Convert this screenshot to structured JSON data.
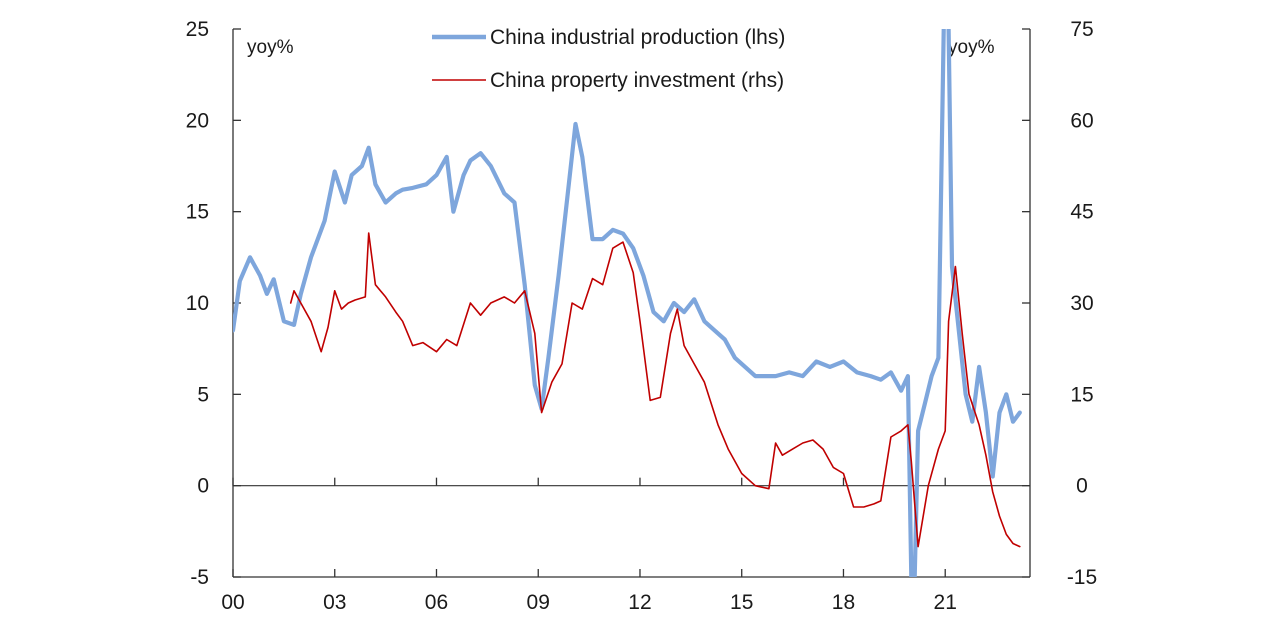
{
  "chart_data": {
    "type": "line",
    "title": "",
    "x_tick_labels": [
      "00",
      "03",
      "06",
      "09",
      "12",
      "15",
      "18",
      "21"
    ],
    "x_tick_years": [
      2000,
      2003,
      2006,
      2009,
      2012,
      2015,
      2018,
      2021
    ],
    "xlim": [
      2000,
      2023.5
    ],
    "y_left": {
      "unit": "yoy%",
      "lim": [
        -5,
        25
      ],
      "ticks": [
        -5,
        0,
        5,
        10,
        15,
        20,
        25
      ]
    },
    "y_right": {
      "unit": "yoy%",
      "lim": [
        -15,
        75
      ],
      "ticks": [
        -15,
        0,
        15,
        30,
        45,
        60,
        75
      ]
    },
    "legend_position": "top-center",
    "series": [
      {
        "name": "China industrial production (lhs)",
        "axis": "left",
        "color": "#7ea6dc",
        "x": [
          2000.0,
          2000.2,
          2000.5,
          2000.8,
          2001.0,
          2001.2,
          2001.5,
          2001.8,
          2002.0,
          2002.3,
          2002.7,
          2003.0,
          2003.3,
          2003.5,
          2003.8,
          2004.0,
          2004.2,
          2004.5,
          2004.8,
          2005.0,
          2005.3,
          2005.7,
          2006.0,
          2006.3,
          2006.5,
          2006.8,
          2007.0,
          2007.3,
          2007.6,
          2008.0,
          2008.3,
          2008.6,
          2008.9,
          2009.1,
          2009.3,
          2009.6,
          2009.9,
          2010.1,
          2010.3,
          2010.6,
          2010.9,
          2011.2,
          2011.5,
          2011.8,
          2012.1,
          2012.4,
          2012.7,
          2013.0,
          2013.3,
          2013.6,
          2013.9,
          2014.2,
          2014.5,
          2014.8,
          2015.1,
          2015.4,
          2015.7,
          2016.0,
          2016.4,
          2016.8,
          2017.2,
          2017.6,
          2018.0,
          2018.4,
          2018.8,
          2019.1,
          2019.4,
          2019.7,
          2019.9,
          2020.0,
          2020.1,
          2020.2,
          2020.4,
          2020.6,
          2020.8,
          2021.0,
          2021.1,
          2021.2,
          2021.4,
          2021.6,
          2021.8,
          2022.0,
          2022.2,
          2022.4,
          2022.6,
          2022.8,
          2023.0,
          2023.2
        ],
        "values": [
          8.5,
          11.2,
          12.5,
          11.5,
          10.5,
          11.3,
          9.0,
          8.8,
          10.5,
          12.5,
          14.5,
          17.2,
          15.5,
          17.0,
          17.5,
          18.5,
          16.5,
          15.5,
          16.0,
          16.2,
          16.3,
          16.5,
          17.0,
          18.0,
          15.0,
          17.0,
          17.8,
          18.2,
          17.5,
          16.0,
          15.5,
          11.0,
          5.5,
          4.2,
          7.0,
          11.5,
          16.5,
          19.8,
          18.0,
          13.5,
          13.5,
          14.0,
          13.8,
          13.0,
          11.5,
          9.5,
          9.0,
          10.0,
          9.5,
          10.2,
          9.0,
          8.5,
          8.0,
          7.0,
          6.5,
          6.0,
          6.0,
          6.0,
          6.2,
          6.0,
          6.8,
          6.5,
          6.8,
          6.2,
          6.0,
          5.8,
          6.2,
          5.2,
          6.0,
          -5.0,
          -5.0,
          3.0,
          4.5,
          6.0,
          7.0,
          30.0,
          25.0,
          12.0,
          8.5,
          5.0,
          3.5,
          6.5,
          4.0,
          0.5,
          4.0,
          5.0,
          3.5,
          4.0
        ]
      },
      {
        "name": "China property investment (rhs)",
        "axis": "right",
        "color": "#c00000",
        "x": [
          2001.7,
          2001.8,
          2002.0,
          2002.3,
          2002.6,
          2002.8,
          2003.0,
          2003.2,
          2003.4,
          2003.6,
          2003.9,
          2004.0,
          2004.2,
          2004.5,
          2004.8,
          2005.0,
          2005.3,
          2005.6,
          2006.0,
          2006.3,
          2006.6,
          2007.0,
          2007.3,
          2007.6,
          2008.0,
          2008.3,
          2008.6,
          2008.9,
          2009.1,
          2009.4,
          2009.7,
          2010.0,
          2010.3,
          2010.6,
          2010.9,
          2011.2,
          2011.5,
          2011.8,
          2012.0,
          2012.3,
          2012.6,
          2012.9,
          2013.1,
          2013.3,
          2013.6,
          2013.9,
          2014.3,
          2014.6,
          2015.0,
          2015.4,
          2015.8,
          2016.0,
          2016.2,
          2016.5,
          2016.8,
          2017.1,
          2017.4,
          2017.7,
          2018.0,
          2018.3,
          2018.6,
          2018.9,
          2019.1,
          2019.4,
          2019.7,
          2019.9,
          2020.0,
          2020.2,
          2020.5,
          2020.8,
          2021.0,
          2021.1,
          2021.3,
          2021.5,
          2021.7,
          2022.0,
          2022.2,
          2022.4,
          2022.6,
          2022.8,
          2023.0,
          2023.2
        ],
        "values": [
          30.0,
          32.0,
          30.0,
          27.0,
          22.0,
          26.0,
          32.0,
          29.0,
          30.0,
          30.5,
          31.0,
          41.5,
          33.0,
          31.0,
          28.5,
          27.0,
          23.0,
          23.5,
          22.0,
          24.0,
          23.0,
          30.0,
          28.0,
          30.0,
          31.0,
          30.0,
          32.0,
          25.0,
          12.0,
          17.0,
          20.0,
          30.0,
          29.0,
          34.0,
          33.0,
          39.0,
          40.0,
          35.0,
          27.0,
          14.0,
          14.5,
          25.0,
          29.0,
          23.0,
          20.0,
          17.0,
          10.0,
          6.0,
          2.0,
          0.0,
          -0.5,
          7.0,
          5.0,
          6.0,
          7.0,
          7.5,
          6.0,
          3.0,
          2.0,
          -3.5,
          -3.5,
          -3.0,
          -2.5,
          8.0,
          9.0,
          10.0,
          4.0,
          -10.0,
          0.0,
          6.0,
          9.0,
          27.0,
          36.0,
          25.0,
          15.0,
          10.0,
          5.0,
          -1.0,
          -5.0,
          -8.0,
          -9.5,
          -10.0
        ]
      }
    ]
  }
}
